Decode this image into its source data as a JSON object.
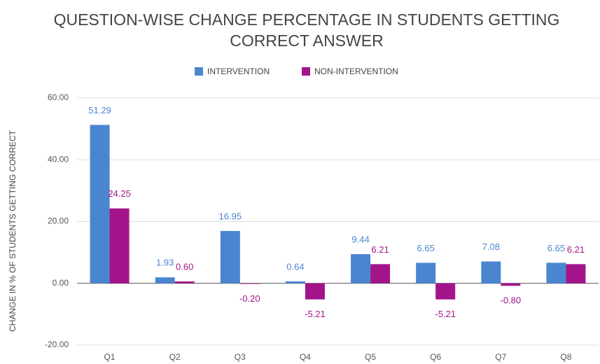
{
  "chart_data": {
    "type": "bar",
    "title": [
      "QUESTION-WISE CHANGE PERCENTAGE IN STUDENTS GETTING",
      "CORRECT ANSWER"
    ],
    "y_label": "CHANGE IN % OF STUDENTS GETTING CORRECT",
    "categories": [
      "Q1",
      "Q2",
      "Q3",
      "Q4",
      "Q5",
      "Q6",
      "Q7",
      "Q8"
    ],
    "series": [
      {
        "name": "INTERVENTION",
        "color": "#4a86d0",
        "values": [
          51.29,
          1.93,
          16.95,
          0.64,
          9.44,
          6.65,
          7.08,
          6.65
        ],
        "value_labels": [
          "51.29",
          "1.93",
          "16.95",
          "0.64",
          "9.44",
          "6.65",
          "7.08",
          "6.65"
        ]
      },
      {
        "name": "NON-INTERVENTION",
        "color": "#a3148a",
        "values": [
          24.25,
          0.6,
          -0.2,
          -5.21,
          6.21,
          -5.21,
          -0.8,
          6.21
        ],
        "value_labels": [
          "24.25",
          "0.60",
          "-0.20",
          "-5.21",
          "6.21",
          "-5.21",
          "-0.80",
          "6.21"
        ]
      }
    ],
    "ylim": [
      -20,
      60
    ],
    "yticks": [
      {
        "value": -20,
        "label": "-20.00"
      },
      {
        "value": 0,
        "label": "0.00"
      },
      {
        "value": 20,
        "label": "20.00"
      },
      {
        "value": 40,
        "label": "40.00"
      },
      {
        "value": 60,
        "label": "60.00"
      }
    ],
    "grid": true,
    "legend": "top"
  }
}
